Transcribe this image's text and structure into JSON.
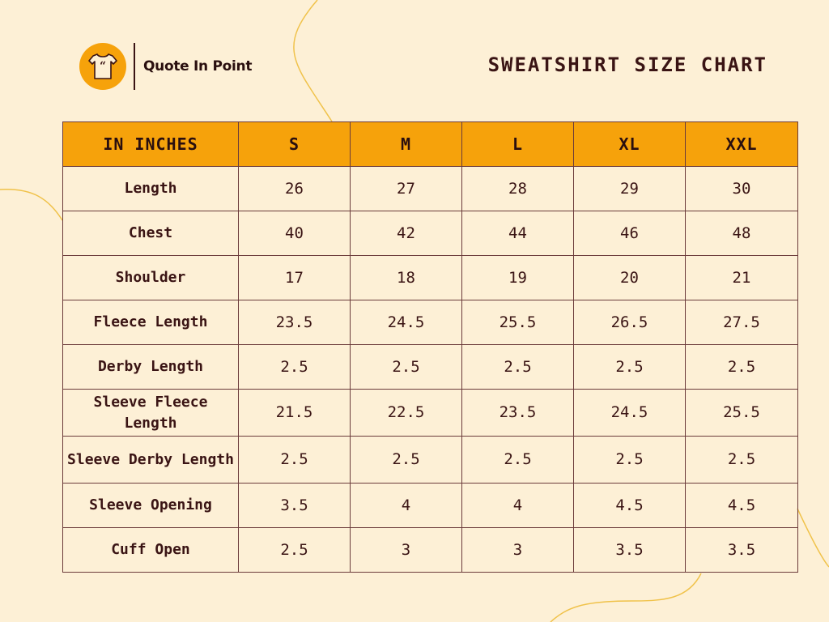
{
  "brand": {
    "name": "Quote In Point",
    "logo_icon": "tshirt-quote-icon"
  },
  "title": "SWEATSHIRT SIZE CHART",
  "colors": {
    "background": "#fdf0d6",
    "accent": "#f6a20b",
    "text": "#3a1414",
    "border": "#6b3b3b"
  },
  "table": {
    "headers": [
      "IN INCHES",
      "S",
      "M",
      "L",
      "XL",
      "XXL"
    ],
    "rows": [
      {
        "label": "Length",
        "values": [
          "26",
          "27",
          "28",
          "29",
          "30"
        ]
      },
      {
        "label": "Chest",
        "values": [
          "40",
          "42",
          "44",
          "46",
          "48"
        ]
      },
      {
        "label": "Shoulder",
        "values": [
          "17",
          "18",
          "19",
          "20",
          "21"
        ]
      },
      {
        "label": "Fleece Length",
        "values": [
          "23.5",
          "24.5",
          "25.5",
          "26.5",
          "27.5"
        ]
      },
      {
        "label": "Derby Length",
        "values": [
          "2.5",
          "2.5",
          "2.5",
          "2.5",
          "2.5"
        ]
      },
      {
        "label": "Sleeve Fleece Length",
        "values": [
          "21.5",
          "22.5",
          "23.5",
          "24.5",
          "25.5"
        ]
      },
      {
        "label": "Sleeve Derby Length",
        "values": [
          "2.5",
          "2.5",
          "2.5",
          "2.5",
          "2.5"
        ]
      },
      {
        "label": "Sleeve Opening",
        "values": [
          "3.5",
          "4",
          "4",
          "4.5",
          "4.5"
        ]
      },
      {
        "label": "Cuff Open",
        "values": [
          "2.5",
          "3",
          "3",
          "3.5",
          "3.5"
        ]
      }
    ]
  }
}
